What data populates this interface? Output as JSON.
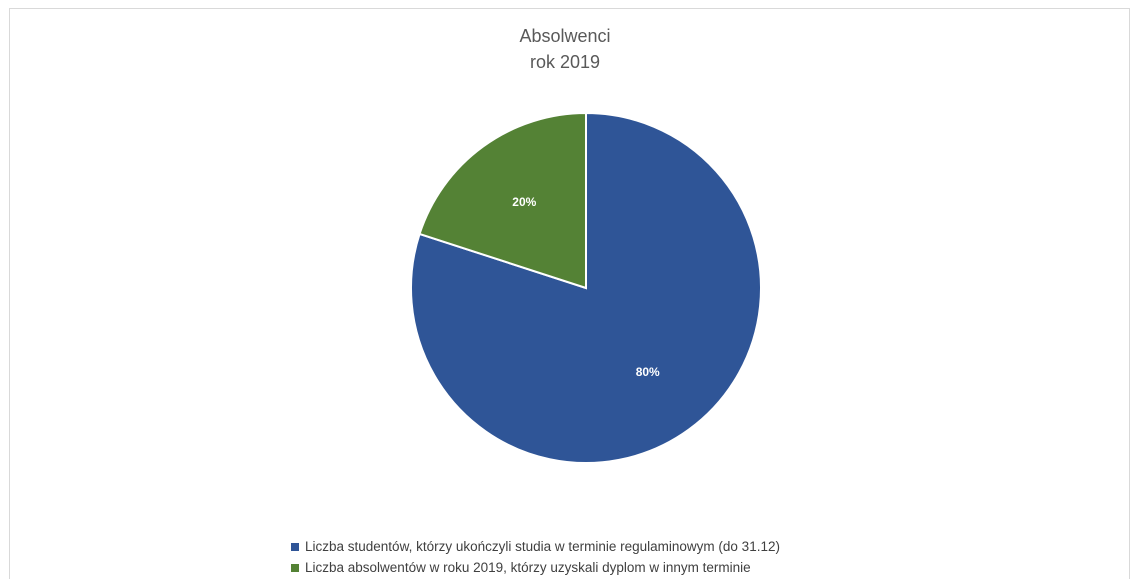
{
  "chart_data": {
    "type": "pie",
    "title": "Absolwenci",
    "subtitle": "rok 2019",
    "slices": [
      {
        "label": "Liczba studentów, którzy ukończyli studia w terminie regulaminowym (do 31.12)",
        "value": 80,
        "display": "80%",
        "color": "#2f5597"
      },
      {
        "label": "Liczba absolwentów w roku 2019, którzy uzyskali dyplom w innym terminie",
        "value": 20,
        "display": "20%",
        "color": "#548235"
      }
    ],
    "legend_position": "bottom"
  }
}
